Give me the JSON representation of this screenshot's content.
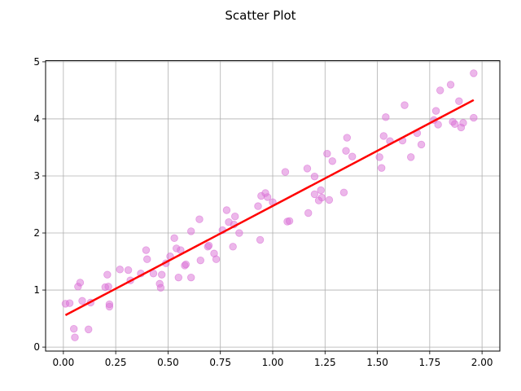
{
  "chart_data": {
    "type": "scatter",
    "title": "Scatter Plot",
    "xlabel": "",
    "ylabel": "",
    "xlim": [
      -0.085,
      2.085
    ],
    "ylim": [
      -0.07,
      5.02
    ],
    "xticks": [
      0.0,
      0.25,
      0.5,
      0.75,
      1.0,
      1.25,
      1.5,
      1.75,
      2.0
    ],
    "xtick_labels": [
      "0.00",
      "0.25",
      "0.50",
      "0.75",
      "1.00",
      "1.25",
      "1.50",
      "1.75",
      "2.00"
    ],
    "yticks": [
      0,
      1,
      2,
      3,
      4,
      5
    ],
    "ytick_labels": [
      "0",
      "1",
      "2",
      "3",
      "4",
      "5"
    ],
    "grid": true,
    "colors": {
      "points": "#da70d6",
      "fit_line": "#ff0000",
      "grid": "#b0b0b0",
      "axes": "#000000"
    },
    "series": [
      {
        "kind": "scatter",
        "x": [
          0.01,
          0.03,
          0.05,
          0.055,
          0.07,
          0.08,
          0.09,
          0.12,
          0.13,
          0.2,
          0.21,
          0.215,
          0.22,
          0.22,
          0.27,
          0.31,
          0.32,
          0.37,
          0.395,
          0.4,
          0.43,
          0.46,
          0.465,
          0.47,
          0.49,
          0.51,
          0.53,
          0.54,
          0.55,
          0.56,
          0.58,
          0.585,
          0.61,
          0.61,
          0.65,
          0.655,
          0.69,
          0.695,
          0.72,
          0.73,
          0.76,
          0.78,
          0.79,
          0.81,
          0.815,
          0.82,
          0.84,
          0.93,
          0.94,
          0.945,
          0.965,
          0.975,
          1.0,
          1.06,
          1.07,
          1.08,
          1.165,
          1.17,
          1.2,
          1.2,
          1.22,
          1.23,
          1.235,
          1.26,
          1.27,
          1.285,
          1.34,
          1.35,
          1.355,
          1.38,
          1.51,
          1.52,
          1.53,
          1.54,
          1.56,
          1.62,
          1.63,
          1.66,
          1.69,
          1.71,
          1.77,
          1.78,
          1.79,
          1.8,
          1.85,
          1.86,
          1.87,
          1.89,
          1.9,
          1.91,
          1.96,
          1.96
        ],
        "y": [
          0.76,
          0.77,
          0.32,
          0.17,
          1.06,
          1.13,
          0.81,
          0.31,
          0.78,
          1.05,
          1.27,
          1.06,
          0.75,
          0.71,
          1.36,
          1.35,
          1.17,
          1.29,
          1.7,
          1.54,
          1.29,
          1.11,
          1.04,
          1.27,
          1.47,
          1.59,
          1.91,
          1.73,
          1.22,
          1.7,
          1.43,
          1.45,
          1.22,
          2.03,
          2.24,
          1.52,
          1.76,
          1.78,
          1.64,
          1.54,
          2.05,
          2.4,
          2.19,
          1.76,
          2.15,
          2.29,
          2.0,
          2.47,
          1.88,
          2.65,
          2.7,
          2.63,
          2.54,
          3.07,
          2.2,
          2.21,
          3.13,
          2.35,
          2.99,
          2.68,
          2.57,
          2.75,
          2.62,
          3.39,
          2.58,
          3.26,
          2.71,
          3.44,
          3.67,
          3.34,
          3.33,
          3.14,
          3.7,
          4.03,
          3.61,
          3.62,
          4.24,
          3.33,
          3.75,
          3.55,
          3.98,
          4.14,
          3.9,
          4.5,
          4.6,
          3.95,
          3.91,
          4.31,
          3.85,
          3.93,
          4.02,
          4.8
        ]
      },
      {
        "kind": "line",
        "x": [
          0.01,
          1.96
        ],
        "y": [
          0.56,
          4.33
        ]
      }
    ]
  }
}
